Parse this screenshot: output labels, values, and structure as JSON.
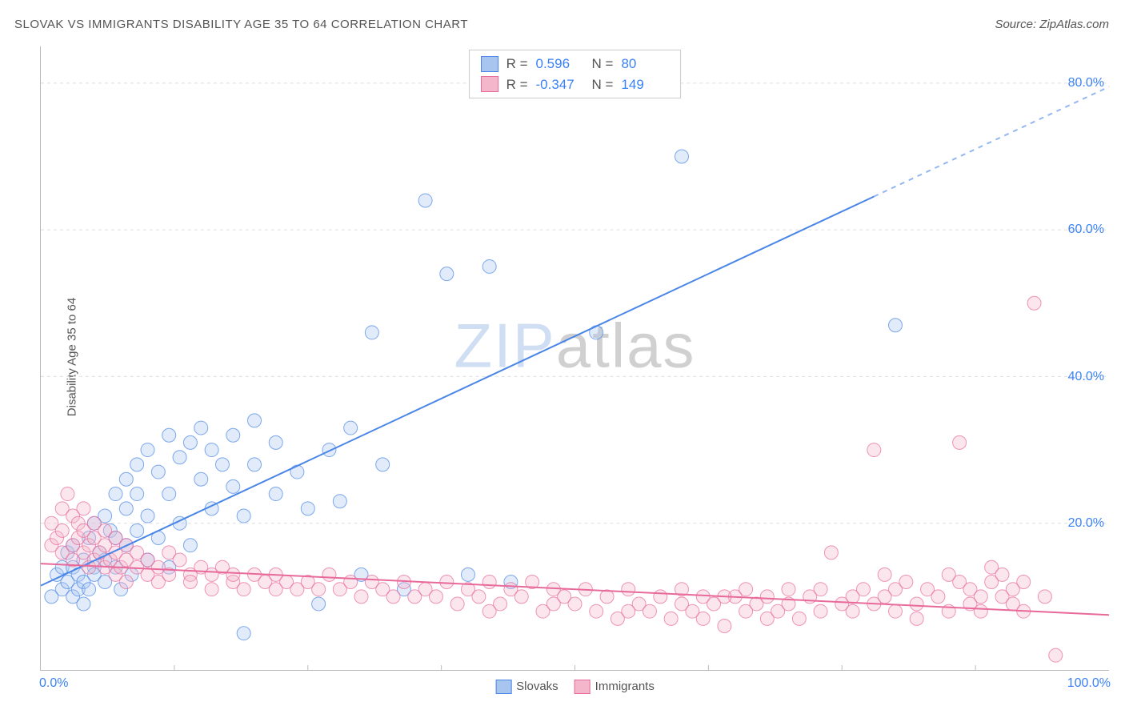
{
  "title": "SLOVAK VS IMMIGRANTS DISABILITY AGE 35 TO 64 CORRELATION CHART",
  "source": "Source: ZipAtlas.com",
  "ylabel": "Disability Age 35 to 64",
  "watermark_a": "ZIP",
  "watermark_b": "atlas",
  "watermark_color_a": "rgba(120,160,220,0.35)",
  "watermark_color_b": "rgba(120,120,120,0.35)",
  "chart": {
    "type": "scatter",
    "xlim": [
      0,
      100
    ],
    "ylim": [
      0,
      85
    ],
    "y_ticks": [
      20,
      40,
      60,
      80
    ],
    "y_tick_labels": [
      "20.0%",
      "40.0%",
      "60.0%",
      "80.0%"
    ],
    "x_ticks": [
      0,
      100
    ],
    "x_tick_labels": [
      "0.0%",
      "100.0%"
    ],
    "background_color": "#ffffff",
    "grid_color": "#dddddd",
    "marker_radius": 8.5,
    "marker_fill_opacity": 0.35,
    "line_width": 2,
    "series": [
      {
        "name": "Slovaks",
        "stroke": "#4a86e8",
        "fill": "#a8c5ef",
        "R": "0.596",
        "N": "80",
        "regression": {
          "x1": 0,
          "y1": 11.5,
          "x2": 100,
          "y2": 79.5,
          "x_solid_end": 78
        },
        "points": [
          [
            1,
            10
          ],
          [
            1.5,
            13
          ],
          [
            2,
            11
          ],
          [
            2,
            14
          ],
          [
            2.5,
            12
          ],
          [
            2.5,
            16
          ],
          [
            3,
            10
          ],
          [
            3,
            14
          ],
          [
            3,
            17
          ],
          [
            3.5,
            11
          ],
          [
            3.5,
            13
          ],
          [
            4,
            12
          ],
          [
            4,
            15
          ],
          [
            4,
            9
          ],
          [
            4.5,
            18
          ],
          [
            4.5,
            11
          ],
          [
            5,
            14
          ],
          [
            5,
            20
          ],
          [
            5,
            13
          ],
          [
            5.5,
            16
          ],
          [
            6,
            12
          ],
          [
            6,
            21
          ],
          [
            6,
            15
          ],
          [
            6.5,
            19
          ],
          [
            7,
            14
          ],
          [
            7,
            24
          ],
          [
            7,
            18
          ],
          [
            7.5,
            11
          ],
          [
            8,
            26
          ],
          [
            8,
            17
          ],
          [
            8,
            22
          ],
          [
            8.5,
            13
          ],
          [
            9,
            28
          ],
          [
            9,
            19
          ],
          [
            9,
            24
          ],
          [
            10,
            15
          ],
          [
            10,
            30
          ],
          [
            10,
            21
          ],
          [
            11,
            27
          ],
          [
            11,
            18
          ],
          [
            12,
            32
          ],
          [
            12,
            24
          ],
          [
            12,
            14
          ],
          [
            13,
            29
          ],
          [
            13,
            20
          ],
          [
            14,
            31
          ],
          [
            14,
            17
          ],
          [
            15,
            26
          ],
          [
            15,
            33
          ],
          [
            16,
            22
          ],
          [
            16,
            30
          ],
          [
            17,
            28
          ],
          [
            18,
            25
          ],
          [
            18,
            32
          ],
          [
            19,
            5
          ],
          [
            19,
            21
          ],
          [
            20,
            34
          ],
          [
            20,
            28
          ],
          [
            22,
            24
          ],
          [
            22,
            31
          ],
          [
            24,
            27
          ],
          [
            25,
            22
          ],
          [
            26,
            9
          ],
          [
            27,
            30
          ],
          [
            28,
            23
          ],
          [
            29,
            33
          ],
          [
            30,
            13
          ],
          [
            31,
            46
          ],
          [
            32,
            28
          ],
          [
            34,
            11
          ],
          [
            36,
            64
          ],
          [
            38,
            54
          ],
          [
            40,
            13
          ],
          [
            42,
            55
          ],
          [
            44,
            12
          ],
          [
            52,
            46
          ],
          [
            60,
            70
          ],
          [
            80,
            47
          ]
        ]
      },
      {
        "name": "Immigrants",
        "stroke": "#e86a9a",
        "fill": "#f4b6cb",
        "R": "-0.347",
        "N": "149",
        "regression": {
          "x1": 0,
          "y1": 14.5,
          "x2": 100,
          "y2": 7.5,
          "x_solid_end": 100
        },
        "points": [
          [
            1,
            17
          ],
          [
            1,
            20
          ],
          [
            1.5,
            18
          ],
          [
            2,
            22
          ],
          [
            2,
            16
          ],
          [
            2,
            19
          ],
          [
            2.5,
            24
          ],
          [
            3,
            17
          ],
          [
            3,
            21
          ],
          [
            3,
            15
          ],
          [
            3.5,
            20
          ],
          [
            3.5,
            18
          ],
          [
            4,
            16
          ],
          [
            4,
            22
          ],
          [
            4,
            19
          ],
          [
            4.5,
            14
          ],
          [
            4.5,
            17
          ],
          [
            5,
            20
          ],
          [
            5,
            15
          ],
          [
            5,
            18
          ],
          [
            5.5,
            16
          ],
          [
            6,
            14
          ],
          [
            6,
            19
          ],
          [
            6,
            17
          ],
          [
            6.5,
            15
          ],
          [
            7,
            13
          ],
          [
            7,
            18
          ],
          [
            7,
            16
          ],
          [
            7.5,
            14
          ],
          [
            8,
            12
          ],
          [
            8,
            17
          ],
          [
            8,
            15
          ],
          [
            9,
            14
          ],
          [
            9,
            16
          ],
          [
            10,
            13
          ],
          [
            10,
            15
          ],
          [
            11,
            14
          ],
          [
            11,
            12
          ],
          [
            12,
            16
          ],
          [
            12,
            13
          ],
          [
            13,
            15
          ],
          [
            14,
            13
          ],
          [
            14,
            12
          ],
          [
            15,
            14
          ],
          [
            16,
            13
          ],
          [
            16,
            11
          ],
          [
            17,
            14
          ],
          [
            18,
            12
          ],
          [
            18,
            13
          ],
          [
            19,
            11
          ],
          [
            20,
            13
          ],
          [
            21,
            12
          ],
          [
            22,
            13
          ],
          [
            22,
            11
          ],
          [
            23,
            12
          ],
          [
            24,
            11
          ],
          [
            25,
            12
          ],
          [
            26,
            11
          ],
          [
            27,
            13
          ],
          [
            28,
            11
          ],
          [
            29,
            12
          ],
          [
            30,
            10
          ],
          [
            31,
            12
          ],
          [
            32,
            11
          ],
          [
            33,
            10
          ],
          [
            34,
            12
          ],
          [
            35,
            10
          ],
          [
            36,
            11
          ],
          [
            37,
            10
          ],
          [
            38,
            12
          ],
          [
            39,
            9
          ],
          [
            40,
            11
          ],
          [
            41,
            10
          ],
          [
            42,
            12
          ],
          [
            43,
            9
          ],
          [
            44,
            11
          ],
          [
            45,
            10
          ],
          [
            46,
            12
          ],
          [
            47,
            8
          ],
          [
            48,
            11
          ],
          [
            49,
            10
          ],
          [
            50,
            9
          ],
          [
            51,
            11
          ],
          [
            52,
            8
          ],
          [
            53,
            10
          ],
          [
            54,
            7
          ],
          [
            55,
            11
          ],
          [
            56,
            9
          ],
          [
            57,
            8
          ],
          [
            58,
            10
          ],
          [
            59,
            7
          ],
          [
            60,
            9
          ],
          [
            60,
            11
          ],
          [
            61,
            8
          ],
          [
            62,
            10
          ],
          [
            62,
            7
          ],
          [
            63,
            9
          ],
          [
            64,
            6
          ],
          [
            65,
            10
          ],
          [
            66,
            8
          ],
          [
            66,
            11
          ],
          [
            67,
            9
          ],
          [
            68,
            7
          ],
          [
            68,
            10
          ],
          [
            69,
            8
          ],
          [
            70,
            11
          ],
          [
            70,
            9
          ],
          [
            71,
            7
          ],
          [
            72,
            10
          ],
          [
            73,
            8
          ],
          [
            73,
            11
          ],
          [
            74,
            16
          ],
          [
            75,
            9
          ],
          [
            76,
            10
          ],
          [
            76,
            8
          ],
          [
            77,
            11
          ],
          [
            78,
            9
          ],
          [
            79,
            13
          ],
          [
            79,
            10
          ],
          [
            80,
            8
          ],
          [
            80,
            11
          ],
          [
            81,
            12
          ],
          [
            82,
            9
          ],
          [
            82,
            7
          ],
          [
            83,
            11
          ],
          [
            84,
            10
          ],
          [
            85,
            13
          ],
          [
            85,
            8
          ],
          [
            86,
            31
          ],
          [
            86,
            12
          ],
          [
            87,
            9
          ],
          [
            87,
            11
          ],
          [
            88,
            10
          ],
          [
            88,
            8
          ],
          [
            89,
            14
          ],
          [
            89,
            12
          ],
          [
            90,
            10
          ],
          [
            90,
            13
          ],
          [
            91,
            9
          ],
          [
            91,
            11
          ],
          [
            92,
            8
          ],
          [
            92,
            12
          ],
          [
            93,
            50
          ],
          [
            94,
            10
          ],
          [
            95,
            2
          ],
          [
            78,
            30
          ],
          [
            64,
            10
          ],
          [
            55,
            8
          ],
          [
            48,
            9
          ],
          [
            42,
            8
          ]
        ]
      }
    ]
  },
  "legend": {
    "series1_label": "Slovaks",
    "series2_label": "Immigrants"
  },
  "stats_labels": {
    "r": "R =",
    "n": "N ="
  }
}
